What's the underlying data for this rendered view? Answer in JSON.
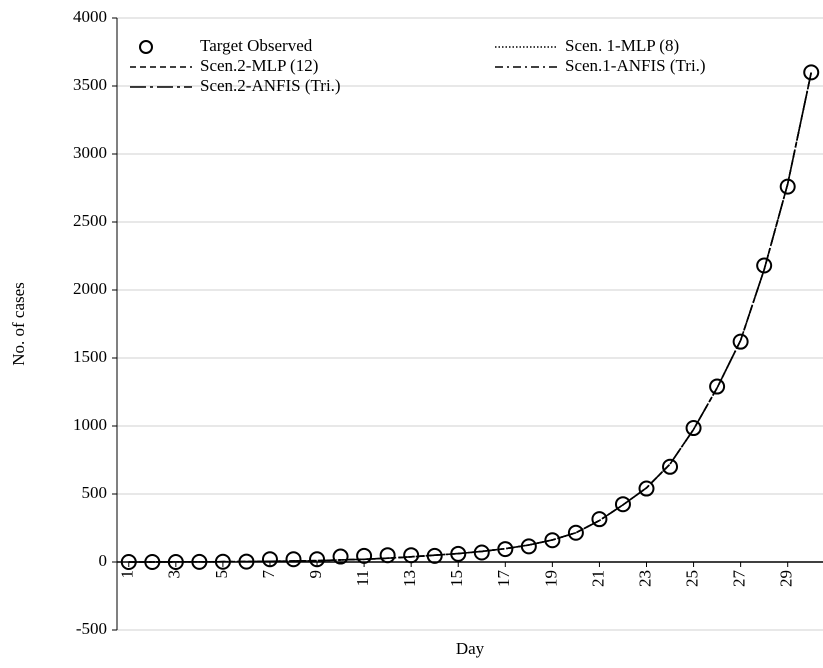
{
  "chart_data": {
    "type": "line",
    "x_label": "Day",
    "y_label": "No. of cases",
    "x": [
      1,
      2,
      3,
      4,
      5,
      6,
      7,
      8,
      9,
      10,
      11,
      12,
      13,
      14,
      15,
      16,
      17,
      18,
      19,
      20,
      21,
      22,
      23,
      24,
      25,
      26,
      27,
      28,
      29,
      30
    ],
    "xlim": [
      0.5,
      30.5
    ],
    "xticks": [
      1,
      3,
      5,
      7,
      9,
      11,
      13,
      15,
      17,
      19,
      21,
      23,
      25,
      27,
      29
    ],
    "ylim": [
      -500,
      4000
    ],
    "yticks": [
      -500,
      0,
      500,
      1000,
      1500,
      2000,
      2500,
      3000,
      3500,
      4000
    ],
    "grid": true,
    "legend": "top",
    "series": [
      {
        "name": "Target Observed",
        "color": "#000000",
        "style": "circle",
        "values": [
          0,
          0,
          0,
          1,
          2,
          3,
          20,
          20,
          20,
          40,
          45,
          50,
          50,
          45,
          60,
          70,
          95,
          115,
          160,
          215,
          315,
          425,
          540,
          700,
          985,
          1290,
          1620,
          2180,
          2760,
          3600
        ]
      },
      {
        "name": "Scen. 1-MLP (8)",
        "color": "#000000",
        "style": "dotted",
        "values": [
          0,
          0,
          1,
          1,
          2,
          3,
          5,
          7,
          10,
          15,
          20,
          28,
          38,
          50,
          62,
          78,
          98,
          125,
          162,
          215,
          305,
          420,
          545,
          720,
          975,
          1280,
          1630,
          2150,
          2780,
          3600
        ]
      },
      {
        "name": "Scen.2-MLP (12)",
        "color": "#000000",
        "style": "dashed",
        "values": [
          0,
          0,
          1,
          1,
          2,
          3,
          5,
          7,
          10,
          15,
          20,
          28,
          38,
          50,
          62,
          78,
          98,
          125,
          162,
          215,
          305,
          420,
          545,
          720,
          975,
          1280,
          1630,
          2150,
          2780,
          3600
        ]
      },
      {
        "name": "Scen.1-ANFIS (Tri.)",
        "color": "#000000",
        "style": "dashdot",
        "values": [
          0,
          0,
          1,
          1,
          2,
          3,
          5,
          7,
          10,
          15,
          20,
          28,
          38,
          50,
          62,
          78,
          98,
          125,
          162,
          215,
          305,
          420,
          545,
          720,
          975,
          1280,
          1630,
          2150,
          2780,
          3600
        ]
      },
      {
        "name": "Scen.2-ANFIS (Tri.)",
        "color": "#000000",
        "style": "longdashdot",
        "values": [
          0,
          0,
          1,
          1,
          2,
          3,
          5,
          7,
          10,
          15,
          20,
          28,
          38,
          50,
          62,
          78,
          98,
          125,
          162,
          215,
          305,
          420,
          545,
          720,
          975,
          1280,
          1630,
          2150,
          2780,
          3600
        ]
      }
    ]
  }
}
